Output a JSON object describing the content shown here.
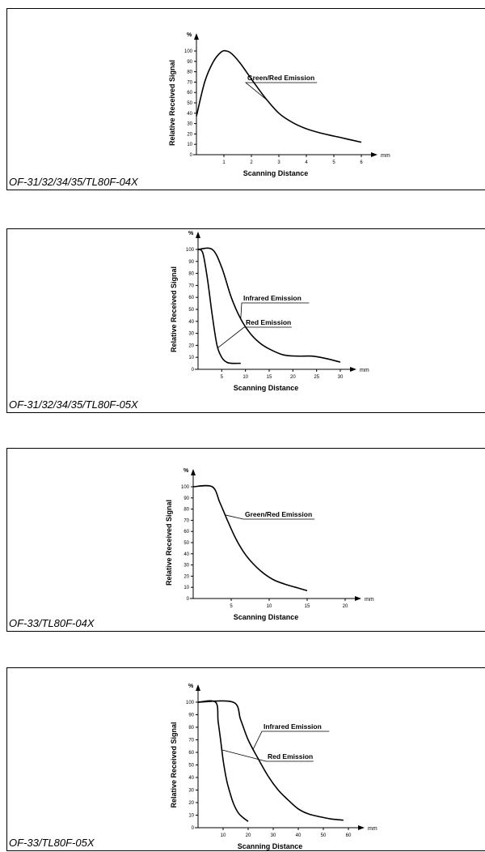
{
  "chart_data": [
    {
      "type": "line",
      "model": "OF-31/32/34/35/TL80F-04X",
      "xlabel": "Scanning Distance",
      "ylabel": "Relative Received Signal",
      "yunit": "%",
      "xunit": "mm",
      "xlim": [
        0,
        6
      ],
      "ylim": [
        0,
        100
      ],
      "xticks": [
        1,
        2,
        3,
        4,
        5,
        6
      ],
      "yticks": [
        0,
        10,
        20,
        30,
        40,
        50,
        60,
        70,
        80,
        90,
        100
      ],
      "series": [
        {
          "name": "Green/Red Emission",
          "x": [
            0,
            0.3,
            0.6,
            0.9,
            1.1,
            1.3,
            1.6,
            2.0,
            2.5,
            3.0,
            3.5,
            4.0,
            4.5,
            5.0,
            5.5,
            6.0
          ],
          "y": [
            37,
            70,
            89,
            99,
            100,
            97,
            88,
            73,
            55,
            40,
            31,
            25,
            21,
            18,
            15,
            12
          ]
        }
      ]
    },
    {
      "type": "line",
      "model": "OF-31/32/34/35/TL80F-05X",
      "xlabel": "Scanning Distance",
      "ylabel": "Relative Received Signal",
      "yunit": "%",
      "xunit": "mm",
      "xlim": [
        0,
        30
      ],
      "ylim": [
        0,
        100
      ],
      "xticks": [
        5,
        10,
        15,
        20,
        25,
        30
      ],
      "yticks": [
        0,
        10,
        20,
        30,
        40,
        50,
        60,
        70,
        80,
        90,
        100
      ],
      "series": [
        {
          "name": "Infrared Emission",
          "x": [
            0,
            3,
            5,
            7,
            9,
            11,
            13,
            15,
            18,
            21,
            24,
            27,
            30
          ],
          "y": [
            100,
            100,
            85,
            60,
            42,
            30,
            22,
            17,
            12,
            11,
            11,
            9,
            6
          ]
        },
        {
          "name": "Red Emission",
          "x": [
            0,
            1,
            2,
            3,
            4,
            5,
            6,
            7,
            9
          ],
          "y": [
            100,
            97,
            75,
            45,
            20,
            10,
            6,
            5,
            5
          ]
        }
      ]
    },
    {
      "type": "line",
      "model": "OF-33/TL80F-04X",
      "xlabel": "Scanning Distance",
      "ylabel": "Relative Received Signal",
      "yunit": "%",
      "xunit": "mm",
      "xlim": [
        0,
        20
      ],
      "ylim": [
        0,
        100
      ],
      "xticks": [
        5,
        10,
        15,
        20
      ],
      "yticks": [
        0,
        10,
        20,
        30,
        40,
        50,
        60,
        70,
        80,
        90,
        100
      ],
      "series": [
        {
          "name": "Green/Red Emission",
          "x": [
            0,
            2.5,
            3.5,
            4.5,
            5.5,
            6.5,
            7.5,
            9,
            10.5,
            12,
            13.5,
            15
          ],
          "y": [
            100,
            100,
            86,
            70,
            55,
            43,
            34,
            24,
            17,
            13,
            10,
            7
          ]
        }
      ]
    },
    {
      "type": "line",
      "model": "OF-33/TL80F-05X",
      "xlabel": "Scanning Distance",
      "ylabel": "Relative Received Signal",
      "yunit": "%",
      "xunit": "mm",
      "xlim": [
        0,
        60
      ],
      "ylim": [
        0,
        100
      ],
      "xticks": [
        10,
        20,
        30,
        40,
        50,
        60
      ],
      "yticks": [
        0,
        10,
        20,
        30,
        40,
        50,
        60,
        70,
        80,
        90,
        100
      ],
      "series": [
        {
          "name": "Infrared Emission",
          "x": [
            0,
            14,
            17,
            20,
            24,
            28,
            32,
            36,
            40,
            44,
            48,
            53,
            58
          ],
          "y": [
            100,
            100,
            86,
            70,
            55,
            41,
            30,
            22,
            15,
            11,
            9,
            7,
            6
          ]
        },
        {
          "name": "Red Emission",
          "x": [
            0,
            7,
            8,
            9,
            10,
            11,
            12,
            14,
            16,
            18,
            20
          ],
          "y": [
            100,
            100,
            85,
            70,
            54,
            42,
            33,
            20,
            12,
            8,
            5
          ]
        }
      ]
    }
  ]
}
